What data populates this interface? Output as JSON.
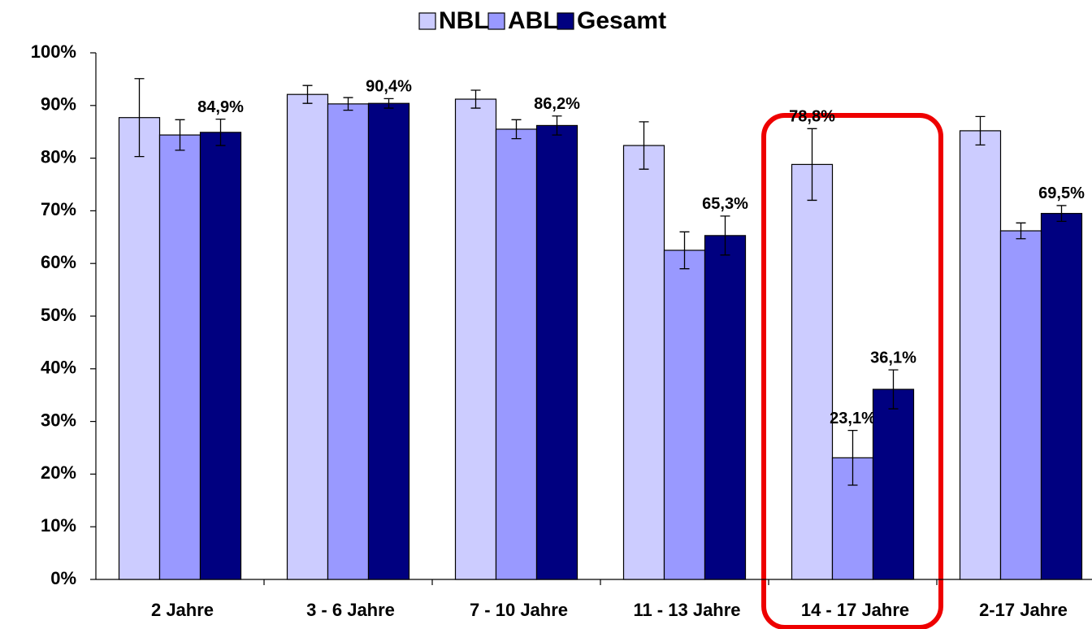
{
  "chart_data": {
    "type": "bar",
    "categories": [
      "2 Jahre",
      "3 - 6 Jahre",
      "7 - 10 Jahre",
      "11 - 13 Jahre",
      "14 - 17 Jahre",
      "2-17 Jahre"
    ],
    "series": [
      {
        "name": "NBL",
        "color": "#ccccff",
        "values": [
          87.7,
          92.1,
          91.2,
          82.4,
          78.8,
          85.2
        ],
        "errors": [
          7.4,
          1.7,
          1.7,
          4.5,
          6.8,
          2.7
        ],
        "value_labels": [
          null,
          null,
          null,
          null,
          "78,8%",
          null
        ]
      },
      {
        "name": "ABL",
        "color": "#9999ff",
        "values": [
          84.4,
          90.3,
          85.5,
          62.5,
          23.1,
          66.2
        ],
        "errors": [
          2.9,
          1.2,
          1.8,
          3.5,
          5.2,
          1.5
        ],
        "value_labels": [
          null,
          null,
          null,
          null,
          "23,1%",
          null
        ]
      },
      {
        "name": "Gesamt",
        "color": "#000080",
        "values": [
          84.9,
          90.4,
          86.2,
          65.3,
          36.1,
          69.5
        ],
        "errors": [
          2.5,
          0.9,
          1.8,
          3.7,
          3.7,
          1.5
        ],
        "value_labels": [
          "84,9%",
          "90,4%",
          "86,2%",
          "65,3%",
          "36,1%",
          "69,5%"
        ]
      }
    ],
    "ylim": [
      0,
      100
    ],
    "yticks": [
      {
        "value": 0,
        "label": "0%"
      },
      {
        "value": 10,
        "label": "10%"
      },
      {
        "value": 20,
        "label": "20%"
      },
      {
        "value": 30,
        "label": "30%"
      },
      {
        "value": 40,
        "label": "40%"
      },
      {
        "value": 50,
        "label": "50%"
      },
      {
        "value": 60,
        "label": "60%"
      },
      {
        "value": 70,
        "label": "70%"
      },
      {
        "value": 80,
        "label": "80%"
      },
      {
        "value": 90,
        "label": "90%"
      },
      {
        "value": 100,
        "label": "100%"
      }
    ],
    "legend": "top",
    "grid": false
  }
}
